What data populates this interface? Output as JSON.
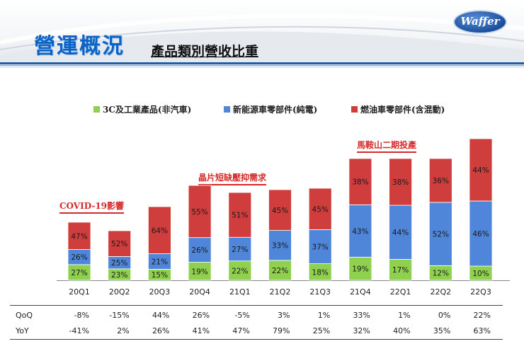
{
  "header": {
    "title": "營運概況",
    "subtitle": "產品類別營收比重",
    "logo_text": "Waffer",
    "colors": {
      "title": "#0d63c4",
      "rule": "#1e5fa8",
      "logo": "#1b4f9c"
    }
  },
  "chart_data": {
    "type": "bar",
    "stacked": true,
    "normalized": false,
    "categories": [
      "20Q1",
      "20Q2",
      "20Q3",
      "20Q4",
      "21Q1",
      "21Q2",
      "21Q3",
      "21Q4",
      "22Q1",
      "22Q2",
      "22Q3"
    ],
    "relative_total": [
      0.41,
      0.35,
      0.52,
      0.67,
      0.62,
      0.64,
      0.65,
      0.86,
      0.86,
      0.86,
      1.0
    ],
    "series": [
      {
        "name": "3C及工業產品(非汽車)",
        "color": "#8fd14f",
        "values": [
          27,
          23,
          15,
          19,
          22,
          22,
          18,
          19,
          17,
          12,
          10
        ]
      },
      {
        "name": "新能源車零部件(純電)",
        "color": "#4f86d9",
        "values": [
          26,
          25,
          21,
          26,
          27,
          33,
          37,
          43,
          44,
          52,
          46
        ]
      },
      {
        "name": "燃油車零部件(含混動)",
        "color": "#cf3d3d",
        "values": [
          47,
          52,
          64,
          55,
          51,
          45,
          45,
          38,
          38,
          36,
          44
        ]
      }
    ],
    "value_suffix": "%",
    "legend_position": "top",
    "grid": false,
    "annotations": [
      {
        "text": "COVID-19影響",
        "category": "20Q1"
      },
      {
        "text": "晶片短缺壓抑需求",
        "category": "21Q1"
      },
      {
        "text": "馬鞍山二期投產",
        "category": "21Q4"
      }
    ],
    "table": {
      "rows": [
        {
          "label": "QoQ",
          "values": [
            "-8%",
            "-15%",
            "44%",
            "26%",
            "-5%",
            "3%",
            "1%",
            "33%",
            "1%",
            "0%",
            "22%"
          ]
        },
        {
          "label": "YoY",
          "values": [
            "-41%",
            "2%",
            "26%",
            "41%",
            "47%",
            "79%",
            "25%",
            "32%",
            "40%",
            "35%",
            "63%"
          ]
        }
      ]
    }
  }
}
